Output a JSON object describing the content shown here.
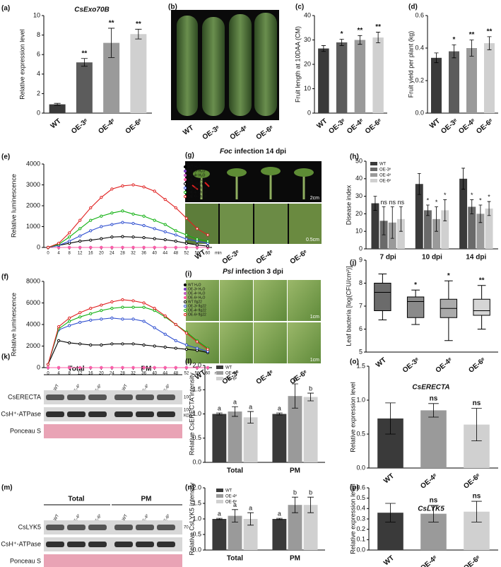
{
  "panel_letters": [
    "(a)",
    "(b)",
    "(c)",
    "(d)",
    "(e)",
    "(f)",
    "(g)",
    "(h)",
    "(i)",
    "(j)",
    "(k)",
    "(l)",
    "(o)",
    "(m)",
    "(n)",
    "(p)"
  ],
  "photo_b": {
    "labels": [
      "WT",
      "OE-3ᵉ",
      "OE-4ᵉ",
      "OE-6ᵉ"
    ]
  },
  "photo_g": {
    "italic": "Foc",
    "title": "infection 14 dpi",
    "scale_top": "2cm",
    "scale_bottom": "0.5cm",
    "labels": [
      "WT",
      "OE-3ᵉ",
      "OE-4ᵉ",
      "OE-6ᵉ"
    ]
  },
  "photo_i": {
    "italic": "Psl",
    "title": "infection 3 dpi",
    "scale_top": "1cm",
    "scale_bottom": "1cm",
    "labels": [
      "WT",
      "OE-3ᵉ",
      "OE-4ᵉ",
      "OE-6ᵉ"
    ]
  },
  "blot_k": {
    "groups": [
      "Total",
      "PM"
    ],
    "lanes": [
      "WT",
      "OE-4ᵉ",
      "OE-6ᵉ",
      "WT",
      "OE-4ᵉ",
      "OE-6ᵉ"
    ],
    "rows": [
      "CsERECTA",
      "CsH⁺-ATPase",
      "Ponceau S"
    ],
    "markers": [
      "100",
      "100",
      "KDa"
    ]
  },
  "blot_m": {
    "groups": [
      "Total",
      "PM"
    ],
    "lanes": [
      "WT",
      "OE-4ᵉ",
      "OE-6ᵉ",
      "WT",
      "OE-4ᵉ",
      "OE-6ᵉ"
    ],
    "rows": [
      "CsLYK5",
      "CsH⁺-ATPase",
      "Ponceau S"
    ],
    "markers": [
      "70"
    ]
  },
  "chart_data": [
    {
      "type": "bar",
      "title": "CsExo70B",
      "ylabel": "Relative expression level",
      "categories": [
        "WT",
        "OE-3ᵉ",
        "OE-4ᵉ",
        "OE-6ᵉ"
      ],
      "values": [
        0.9,
        5.2,
        7.2,
        8.1
      ],
      "errors": [
        0.1,
        0.4,
        1.5,
        0.5
      ],
      "annotations": [
        null,
        "**",
        "**",
        "**"
      ],
      "colors": [
        "#3a3a3a",
        "#5c5c5c",
        "#9a9a9a",
        "#d0d0d0"
      ],
      "ylim": [
        0,
        10
      ],
      "yticks": [
        0,
        2,
        4,
        6,
        8,
        10
      ]
    },
    {
      "type": "bar",
      "ylabel": "Fruit length at 10DAA (CM)",
      "categories": [
        "WT",
        "OE-3ᵉ",
        "OE-4ᵉ",
        "OE-6ᵉ"
      ],
      "values": [
        26.5,
        29,
        30,
        31
      ],
      "errors": [
        1.2,
        1.3,
        1.8,
        2.2
      ],
      "annotations": [
        null,
        "*",
        "**",
        "**"
      ],
      "colors": [
        "#3a3a3a",
        "#5c5c5c",
        "#9a9a9a",
        "#d0d0d0"
      ],
      "ylim": [
        0,
        40
      ],
      "yticks": [
        0,
        10,
        20,
        30,
        40
      ]
    },
    {
      "type": "bar",
      "ylabel": "Fruit yield per plant (kg)",
      "categories": [
        "WT",
        "OE-3ᵉ",
        "OE-4ᵉ",
        "OE-6ᵉ"
      ],
      "values": [
        0.34,
        0.38,
        0.4,
        0.43
      ],
      "errors": [
        0.03,
        0.04,
        0.05,
        0.04
      ],
      "annotations": [
        null,
        "*",
        "**",
        "**"
      ],
      "colors": [
        "#3a3a3a",
        "#5c5c5c",
        "#9a9a9a",
        "#d0d0d0"
      ],
      "ylim": [
        0,
        0.6
      ],
      "yticks": [
        {
          "value": 0,
          "label": "0.0"
        },
        0.2,
        0.4,
        0.6
      ]
    },
    {
      "type": "line",
      "ylabel": "Relative luminescence",
      "xlabel": "min",
      "x": [
        0,
        4,
        8,
        12,
        16,
        20,
        24,
        28,
        32,
        36,
        40,
        44,
        48,
        52,
        56,
        60
      ],
      "xlim": [
        0,
        60
      ],
      "xticks": [
        0,
        4,
        8,
        12,
        16,
        20,
        24,
        28,
        32,
        36,
        40,
        44,
        48,
        52,
        56,
        60
      ],
      "ylim": [
        0,
        4000
      ],
      "yticks": [
        0,
        1000,
        2000,
        3000,
        4000
      ],
      "series": [
        {
          "name": "WT H₂O",
          "color": "#000000",
          "values": [
            0,
            0,
            0,
            0,
            0,
            0,
            0,
            0,
            0,
            0,
            0,
            0,
            0,
            0,
            0,
            0
          ]
        },
        {
          "name": "OE-3ᵉ H₂O",
          "color": "#7b3fbf",
          "values": [
            0,
            0,
            0,
            0,
            0,
            0,
            0,
            0,
            0,
            0,
            0,
            0,
            0,
            0,
            0,
            0
          ]
        },
        {
          "name": "OE-4ᵉ H₂O",
          "color": "#c060c0",
          "values": [
            0,
            0,
            0,
            0,
            0,
            0,
            0,
            0,
            0,
            0,
            0,
            0,
            0,
            0,
            0,
            0
          ]
        },
        {
          "name": "OE-6ᵉ H₂O",
          "color": "#ff5fa8",
          "values": [
            0,
            0,
            0,
            0,
            0,
            0,
            0,
            0,
            0,
            0,
            0,
            0,
            0,
            0,
            0,
            0
          ]
        },
        {
          "name": "WT chitin",
          "color": "#000000",
          "values": [
            0,
            100,
            200,
            300,
            350,
            420,
            500,
            520,
            500,
            470,
            420,
            370,
            300,
            200,
            120,
            60
          ]
        },
        {
          "name": "OE-3ᵉ chitin",
          "color": "#2f4fd0",
          "values": [
            0,
            100,
            300,
            550,
            800,
            1000,
            1100,
            1200,
            1150,
            1050,
            900,
            750,
            600,
            400,
            300,
            200
          ]
        },
        {
          "name": "OE-4ᵉ chitin",
          "color": "#10b010",
          "values": [
            0,
            150,
            500,
            900,
            1300,
            1500,
            1650,
            1750,
            1600,
            1500,
            1300,
            1100,
            800,
            600,
            400,
            300
          ]
        },
        {
          "name": "OE-6ᵉ chitin",
          "color": "#e02020",
          "values": [
            0,
            200,
            700,
            1300,
            1900,
            2400,
            2800,
            2950,
            3000,
            2900,
            2700,
            2300,
            1900,
            1400,
            900,
            600
          ]
        }
      ]
    },
    {
      "type": "line",
      "ylabel": "Relative luminescence",
      "xlabel": "min",
      "x": [
        0,
        4,
        8,
        12,
        16,
        20,
        24,
        28,
        32,
        36,
        40,
        44,
        48,
        52,
        56,
        60
      ],
      "xlim": [
        0,
        60
      ],
      "xticks": [
        0,
        4,
        8,
        12,
        16,
        20,
        24,
        28,
        32,
        36,
        40,
        44,
        48,
        52,
        56,
        60
      ],
      "ylim": [
        0,
        8000
      ],
      "yticks": [
        0,
        2000,
        4000,
        6000,
        8000
      ],
      "series": [
        {
          "name": "WT H₂O",
          "color": "#000000",
          "values": [
            0,
            0,
            0,
            0,
            0,
            0,
            0,
            0,
            0,
            0,
            0,
            0,
            0,
            0,
            0,
            0
          ]
        },
        {
          "name": "OE-3ᵉ H₂O",
          "color": "#7b3fbf",
          "values": [
            0,
            0,
            0,
            0,
            0,
            0,
            0,
            0,
            0,
            0,
            0,
            0,
            0,
            0,
            0,
            0
          ]
        },
        {
          "name": "OE-4ᵉ H₂O",
          "color": "#c060c0",
          "values": [
            0,
            0,
            0,
            0,
            0,
            0,
            0,
            0,
            0,
            0,
            0,
            0,
            0,
            0,
            0,
            0
          ]
        },
        {
          "name": "OE-6ᵉ H₂O",
          "color": "#ff5fa8",
          "values": [
            0,
            0,
            0,
            0,
            0,
            0,
            0,
            0,
            0,
            0,
            0,
            0,
            0,
            0,
            0,
            0
          ]
        },
        {
          "name": "WT flg22",
          "color": "#000000",
          "values": [
            300,
            2500,
            2300,
            2200,
            2100,
            2100,
            2200,
            2200,
            2200,
            2100,
            2000,
            1900,
            1800,
            1700,
            1600,
            1400
          ]
        },
        {
          "name": "OE-3ᵉ flg22",
          "color": "#2f4fd0",
          "values": [
            300,
            3500,
            3900,
            4200,
            4400,
            4500,
            4600,
            4500,
            4500,
            4300,
            3700,
            3100,
            2500,
            2100,
            1800,
            1500
          ]
        },
        {
          "name": "OE-4ᵉ flg22",
          "color": "#10b010",
          "values": [
            300,
            3600,
            4300,
            4700,
            5000,
            5300,
            5500,
            5600,
            5600,
            5600,
            5300,
            4700,
            4000,
            3300,
            2500,
            1800
          ]
        },
        {
          "name": "OE-6ᵉ flg22",
          "color": "#e02020",
          "values": [
            300,
            3800,
            4600,
            5100,
            5500,
            5800,
            6100,
            6300,
            6200,
            6000,
            5500,
            4800,
            4000,
            3200,
            2400,
            1700
          ]
        }
      ]
    },
    {
      "type": "grouped_bar",
      "ylabel": "Disease index",
      "categories": [
        "7 dpi",
        "10 dpi",
        "14 dpi"
      ],
      "ylim": [
        0,
        50
      ],
      "yticks": [
        0,
        10,
        20,
        30,
        40,
        50
      ],
      "series": [
        {
          "name": "WT",
          "color": "#3a3a3a",
          "values": [
            26,
            37,
            40
          ],
          "errors": [
            4,
            6,
            6
          ],
          "annotations": [
            null,
            null,
            null
          ]
        },
        {
          "name": "OE-3ᵉ",
          "color": "#6a6a6a",
          "values": [
            16,
            22,
            24
          ],
          "errors": [
            8,
            3,
            4
          ],
          "annotations": [
            "ns",
            "*",
            "*"
          ]
        },
        {
          "name": "OE-4ᵉ",
          "color": "#9a9a9a",
          "values": [
            15,
            17,
            20
          ],
          "errors": [
            9,
            7,
            5
          ],
          "annotations": [
            "ns",
            "*",
            "*"
          ]
        },
        {
          "name": "OE-6ᵉ",
          "color": "#d0d0d0",
          "values": [
            17,
            22,
            23
          ],
          "errors": [
            7,
            6,
            4
          ],
          "annotations": [
            "ns",
            "*",
            "*"
          ]
        }
      ]
    },
    {
      "type": "box",
      "ylabel": "Leaf bacteria [log(CFU/cm²)]",
      "categories": [
        "WT",
        "OE-3ᵉ",
        "OE-4ᵉ",
        "OE-6ᵉ"
      ],
      "min": [
        6.4,
        6.2,
        5.5,
        6.0
      ],
      "q1": [
        6.8,
        6.5,
        6.5,
        6.6
      ],
      "median": [
        7.6,
        7.2,
        6.9,
        6.8
      ],
      "q3": [
        8.0,
        7.4,
        7.3,
        7.3
      ],
      "max": [
        8.4,
        7.7,
        8.1,
        7.9
      ],
      "annotations": [
        null,
        "*",
        "*",
        "**"
      ],
      "colors": [
        "#6b6b6b",
        "#8a8a8a",
        "#aaaaaa",
        "#d5d5d5"
      ],
      "ylim": [
        5,
        9
      ],
      "yticks": [
        5,
        6,
        7,
        8,
        9
      ]
    },
    {
      "type": "grouped_bar",
      "ylabel": "Relative CsERECTA intensity",
      "categories": [
        "Total",
        "PM"
      ],
      "ylim": [
        0,
        2
      ],
      "yticks": [
        {
          "value": 0,
          "label": "0.0"
        },
        0.5,
        {
          "value": 1,
          "label": "1.0"
        },
        1.5,
        {
          "value": 2,
          "label": "2.0"
        }
      ],
      "series": [
        {
          "name": "WT",
          "color": "#3a3a3a",
          "values": [
            1.0,
            1.0
          ],
          "errors": [
            0.02,
            0.02
          ],
          "annotations": [
            "a",
            "a"
          ]
        },
        {
          "name": "OE-4ᵉ",
          "color": "#9a9a9a",
          "values": [
            1.05,
            1.37
          ],
          "errors": [
            0.1,
            0.25
          ],
          "annotations": [
            "a",
            "b"
          ]
        },
        {
          "name": "OE-6ᵉ",
          "color": "#d0d0d0",
          "values": [
            0.93,
            1.35
          ],
          "errors": [
            0.12,
            0.08
          ],
          "annotations": [
            "a",
            "b"
          ]
        }
      ]
    },
    {
      "type": "bar",
      "title": "CsERECTA",
      "ylabel": "Relative expression level",
      "categories": [
        "WT",
        "OE-4ᵉ",
        "OE-6ᵉ"
      ],
      "values": [
        0.73,
        0.85,
        0.64
      ],
      "errors": [
        0.23,
        0.1,
        0.24
      ],
      "annotations": [
        null,
        "ns",
        "ns"
      ],
      "colors": [
        "#3a3a3a",
        "#9a9a9a",
        "#d0d0d0"
      ],
      "ylim": [
        0,
        1.5
      ],
      "yticks": [
        {
          "value": 0,
          "label": "0.0"
        },
        0.5,
        {
          "value": 1,
          "label": "1.0"
        },
        1.5
      ]
    },
    {
      "type": "grouped_bar",
      "ylabel": "Relative CsLYK5 intensity",
      "categories": [
        "Total",
        "PM"
      ],
      "ylim": [
        0,
        2
      ],
      "yticks": [
        {
          "value": 0,
          "label": "0.0"
        },
        0.5,
        {
          "value": 1,
          "label": "1.0"
        },
        1.5,
        {
          "value": 2,
          "label": "2.0"
        }
      ],
      "series": [
        {
          "name": "WT",
          "color": "#3a3a3a",
          "values": [
            1.0,
            1.0
          ],
          "errors": [
            0.02,
            0.02
          ],
          "annotations": [
            "a",
            "a"
          ]
        },
        {
          "name": "OE-4ᵉ",
          "color": "#9a9a9a",
          "values": [
            1.1,
            1.45
          ],
          "errors": [
            0.2,
            0.25
          ],
          "annotations": [
            "a",
            "b"
          ]
        },
        {
          "name": "OE-6ᵉ",
          "color": "#d0d0d0",
          "values": [
            1.0,
            1.45
          ],
          "errors": [
            0.2,
            0.25
          ],
          "annotations": [
            "a",
            "b"
          ]
        }
      ]
    },
    {
      "type": "bar",
      "title": "CsLYK5",
      "ylabel": "Relative expression level",
      "categories": [
        "WT",
        "OE-4ᵉ",
        "OE-6ᵉ"
      ],
      "values": [
        0.36,
        0.35,
        0.37
      ],
      "errors": [
        0.09,
        0.08,
        0.1
      ],
      "annotations": [
        null,
        "ns",
        "ns"
      ],
      "colors": [
        "#3a3a3a",
        "#9a9a9a",
        "#d0d0d0"
      ],
      "ylim": [
        0,
        0.6
      ],
      "yticks": [
        {
          "value": 0,
          "label": "0.0"
        },
        0.1,
        0.2,
        0.3,
        0.4,
        0.5,
        0.6
      ]
    }
  ]
}
